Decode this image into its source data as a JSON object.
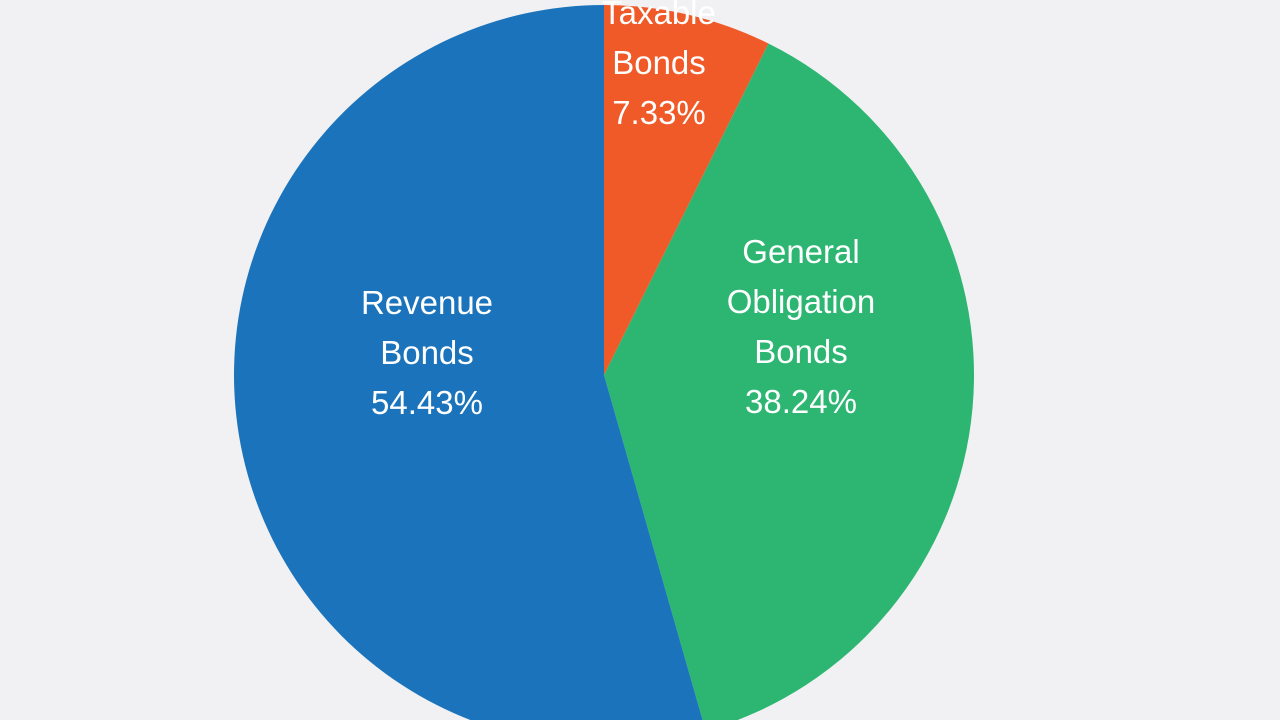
{
  "chart_data": {
    "type": "pie",
    "start_angle_deg": 0,
    "direction": "clockwise",
    "background": "#f1f1f4",
    "slices": [
      {
        "id": "taxable",
        "label_lines": [
          "Taxable",
          "Bonds"
        ],
        "value": 7.33,
        "value_label": "7.33%",
        "color": "#f05a28"
      },
      {
        "id": "general-obligation",
        "label_lines": [
          "General",
          "Obligation",
          "Bonds"
        ],
        "value": 38.24,
        "value_label": "38.24%",
        "color": "#2db672"
      },
      {
        "id": "revenue",
        "label_lines": [
          "Revenue",
          "Bonds"
        ],
        "value": 54.43,
        "value_label": "54.43%",
        "color": "#1b74bb"
      }
    ]
  }
}
